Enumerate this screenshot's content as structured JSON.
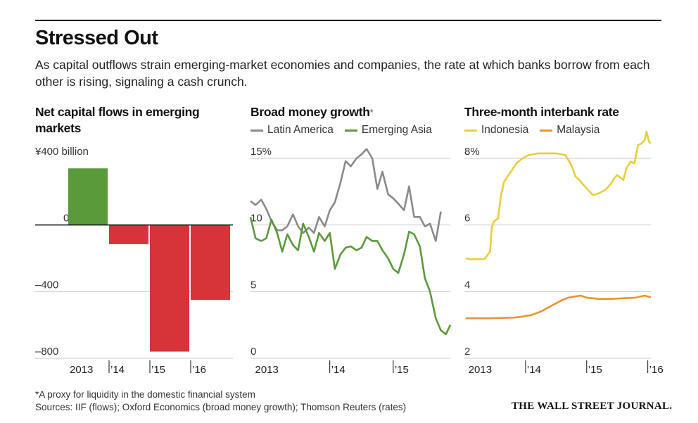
{
  "header": {
    "title": "Stressed Out",
    "subtitle": "As capital outflows strain emerging-market economies and companies, the rate at which banks borrow from each other is rising, signaling a cash crunch."
  },
  "footer": {
    "footnote": "*A proxy for liquidity in the domestic financial system",
    "sources": "Sources: IIF (flows); Oxford Economics (broad money growth); Thomson Reuters (rates)",
    "publisher": "THE WALL STREET JOURNAL."
  },
  "colors": {
    "green": "#5a9a3a",
    "red": "#d7343a",
    "gray": "#8a8a8a",
    "yellow": "#eccd3a",
    "orange": "#e8952e",
    "grid": "#c9c9c9"
  },
  "chart_data": [
    {
      "type": "bar",
      "title": "Net capital flows in emerging markets",
      "ylabel": "¥400 billion",
      "ylim": [
        -800,
        400
      ],
      "yticks": [
        {
          "value": 400,
          "label": "¥400 billion"
        },
        {
          "value": 0,
          "label": "0"
        },
        {
          "value": -400,
          "label": "–400"
        },
        {
          "value": -800,
          "label": "–800"
        }
      ],
      "categories": [
        "2013",
        "’14",
        "’15",
        "’16"
      ],
      "values": [
        340,
        -115,
        -760,
        -450
      ]
    },
    {
      "type": "line",
      "title": "Broad money growth",
      "title_marker": "*",
      "legend": [
        "Latin America",
        "Emerging Asia"
      ],
      "ylim": [
        0,
        15
      ],
      "yticks": [
        {
          "value": 15,
          "label": "15%"
        },
        {
          "value": 10,
          "label": "10"
        },
        {
          "value": 5,
          "label": "5"
        },
        {
          "value": 0,
          "label": "0"
        }
      ],
      "xlim": [
        2012.75,
        2015.9
      ],
      "xticks": [
        {
          "value": 2013,
          "label": "2013",
          "tick": false
        },
        {
          "value": 2014,
          "label": "’14",
          "tick": true
        },
        {
          "value": 2015,
          "label": "’15",
          "tick": true
        }
      ],
      "series": [
        {
          "name": "Latin America",
          "color": "gray",
          "x": [
            2012.75,
            2012.83,
            2012.92,
            2013.0,
            2013.08,
            2013.17,
            2013.25,
            2013.33,
            2013.42,
            2013.5,
            2013.58,
            2013.67,
            2013.75,
            2013.83,
            2013.92,
            2014.0,
            2014.08,
            2014.17,
            2014.25,
            2014.33,
            2014.42,
            2014.5,
            2014.58,
            2014.67,
            2014.75,
            2014.83,
            2014.92,
            2015.0,
            2015.08,
            2015.17,
            2015.25,
            2015.33,
            2015.42,
            2015.5,
            2015.58,
            2015.67,
            2015.75,
            2015.83,
            2015.9
          ],
          "values": [
            11.8,
            11.5,
            11.9,
            11.2,
            10.3,
            9.6,
            9.6,
            9.9,
            10.8,
            9.9,
            9.4,
            9.8,
            9.4,
            10.6,
            9.9,
            11.1,
            11.7,
            13.2,
            14.8,
            14.4,
            15.0,
            15.3,
            15.7,
            15.0,
            12.7,
            14.0,
            12.3,
            12.0,
            11.6,
            11.1,
            12.9,
            10.6,
            10.6,
            9.9,
            10.1,
            8.8,
            11.0,
            null,
            null
          ]
        },
        {
          "name": "Emerging Asia",
          "color": "green",
          "x": [
            2012.75,
            2012.83,
            2012.92,
            2013.0,
            2013.08,
            2013.17,
            2013.25,
            2013.33,
            2013.42,
            2013.5,
            2013.58,
            2013.67,
            2013.75,
            2013.83,
            2013.92,
            2014.0,
            2014.08,
            2014.17,
            2014.25,
            2014.33,
            2014.42,
            2014.5,
            2014.58,
            2014.67,
            2014.75,
            2014.83,
            2014.92,
            2015.0,
            2015.08,
            2015.17,
            2015.25,
            2015.33,
            2015.42,
            2015.5,
            2015.58,
            2015.67,
            2015.75,
            2015.83,
            2015.9
          ],
          "values": [
            10.6,
            9.0,
            8.8,
            9.0,
            10.4,
            9.4,
            8.0,
            9.3,
            8.5,
            8.1,
            10.1,
            9.1,
            8.0,
            9.4,
            8.8,
            9.4,
            6.7,
            7.8,
            8.3,
            8.4,
            8.1,
            8.3,
            9.1,
            8.8,
            8.8,
            8.1,
            7.5,
            6.7,
            6.4,
            7.8,
            9.5,
            9.3,
            8.4,
            6.0,
            5.0,
            3.0,
            2.1,
            1.8,
            2.5
          ]
        }
      ]
    },
    {
      "type": "line",
      "title": "Three-month interbank rate",
      "legend": [
        "Indonesia",
        "Malaysia"
      ],
      "ylim": [
        2,
        8
      ],
      "yticks": [
        {
          "value": 8,
          "label": "8%"
        },
        {
          "value": 6,
          "label": "6"
        },
        {
          "value": 4,
          "label": "4"
        },
        {
          "value": 2,
          "label": "2"
        }
      ],
      "xlim": [
        2013.0,
        2016.05
      ],
      "xticks": [
        {
          "value": 2013.25,
          "label": "2013",
          "tick": false
        },
        {
          "value": 2014,
          "label": "’14",
          "tick": true
        },
        {
          "value": 2015,
          "label": "’15",
          "tick": true
        },
        {
          "value": 2016,
          "label": "’16",
          "tick": true
        }
      ],
      "series": [
        {
          "name": "Indonesia",
          "color": "yellow",
          "x": [
            2013.02,
            2013.1,
            2013.2,
            2013.33,
            2013.42,
            2013.45,
            2013.48,
            2013.55,
            2013.6,
            2013.65,
            2013.72,
            2013.78,
            2013.85,
            2013.95,
            2014.05,
            2014.2,
            2014.35,
            2014.5,
            2014.65,
            2014.75,
            2014.82,
            2014.88,
            2014.95,
            2015.0,
            2015.1,
            2015.2,
            2015.3,
            2015.38,
            2015.45,
            2015.5,
            2015.6,
            2015.65,
            2015.72,
            2015.78,
            2015.84,
            2015.9,
            2015.95,
            2015.98,
            2016.02,
            2016.05
          ],
          "values": [
            5.0,
            4.97,
            4.97,
            4.98,
            5.2,
            5.95,
            6.1,
            6.2,
            6.9,
            7.3,
            7.5,
            7.65,
            7.85,
            8.0,
            8.1,
            8.15,
            8.15,
            8.15,
            8.1,
            7.8,
            7.45,
            7.35,
            7.2,
            7.1,
            6.9,
            6.95,
            7.05,
            7.2,
            7.4,
            7.5,
            7.35,
            7.7,
            7.9,
            7.85,
            8.4,
            8.45,
            8.55,
            8.8,
            8.5,
            8.45
          ]
        },
        {
          "name": "Malaysia",
          "color": "orange",
          "x": [
            2013.02,
            2013.2,
            2013.4,
            2013.6,
            2013.8,
            2013.95,
            2014.1,
            2014.25,
            2014.4,
            2014.5,
            2014.6,
            2014.7,
            2014.8,
            2014.9,
            2015.0,
            2015.2,
            2015.4,
            2015.6,
            2015.8,
            2015.95,
            2016.0,
            2016.05
          ],
          "values": [
            3.2,
            3.2,
            3.2,
            3.21,
            3.22,
            3.25,
            3.3,
            3.4,
            3.55,
            3.65,
            3.75,
            3.82,
            3.85,
            3.88,
            3.82,
            3.78,
            3.78,
            3.8,
            3.82,
            3.88,
            3.85,
            3.83
          ]
        }
      ]
    }
  ]
}
